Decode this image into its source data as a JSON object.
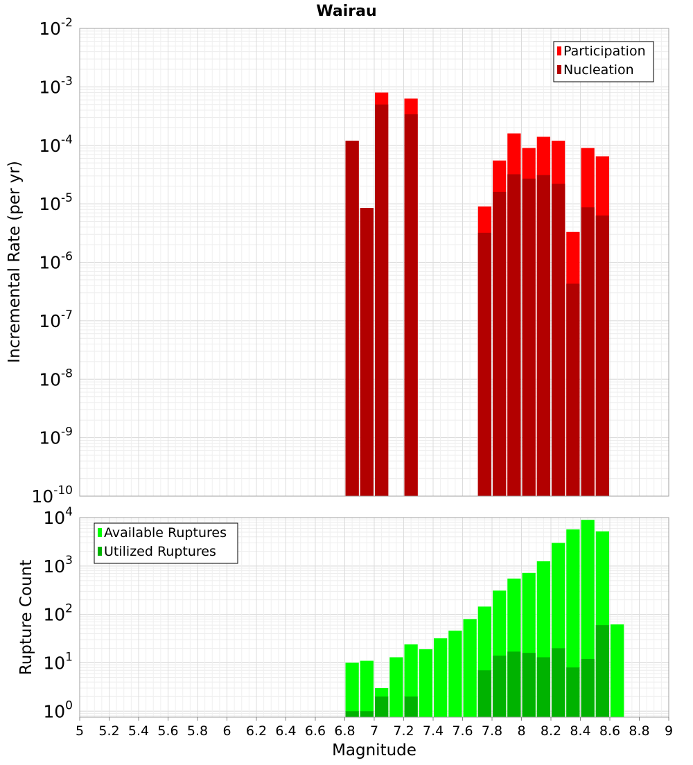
{
  "chart_data": [
    {
      "type": "bar",
      "title": "Wairau",
      "xlabel": "",
      "ylabel": "Incremental Rate (per yr)",
      "yscale": "log",
      "ylim": [
        1e-10,
        0.01
      ],
      "xlim": [
        5,
        9
      ],
      "bin_width": 0.1,
      "grid": true,
      "legend_position": "top-right",
      "x": [
        6.85,
        6.95,
        7.05,
        7.25,
        7.75,
        7.85,
        7.95,
        8.05,
        8.15,
        8.25,
        8.35,
        8.45,
        8.55
      ],
      "series": [
        {
          "name": "Participation",
          "color": "#ff0000",
          "values": [
            0.00012,
            8.5e-06,
            0.0008,
            0.00063,
            9e-06,
            5.5e-05,
            0.00016,
            9e-05,
            0.00014,
            0.00012,
            3.3e-06,
            9e-05,
            6.5e-05
          ]
        },
        {
          "name": "Nucleation",
          "color": "#b20000",
          "values": [
            0.00012,
            8.5e-06,
            0.0005,
            0.00034,
            3.2e-06,
            1.6e-05,
            3.2e-05,
            2.7e-05,
            3.1e-05,
            2.2e-05,
            4.3e-07,
            8.7e-06,
            6.3e-06
          ]
        }
      ]
    },
    {
      "type": "bar",
      "title": "",
      "xlabel": "Magnitude",
      "ylabel": "Rupture Count",
      "yscale": "log",
      "ylim": [
        0.75,
        10000
      ],
      "xlim": [
        5,
        9
      ],
      "bin_width": 0.1,
      "grid": true,
      "legend_position": "top-left",
      "x": [
        6.85,
        6.95,
        7.05,
        7.15,
        7.25,
        7.35,
        7.45,
        7.55,
        7.65,
        7.75,
        7.85,
        7.95,
        8.05,
        8.15,
        8.25,
        8.35,
        8.45,
        8.55,
        8.65
      ],
      "series": [
        {
          "name": "Available Ruptures",
          "color": "#00ff00",
          "values": [
            10,
            11,
            3,
            13,
            24,
            19,
            32,
            46,
            80,
            145,
            310,
            550,
            720,
            1250,
            3000,
            5700,
            9000,
            5200,
            62
          ]
        },
        {
          "name": "Utilized Ruptures",
          "color": "#00b200",
          "values": [
            1,
            1,
            2,
            null,
            2,
            null,
            null,
            null,
            null,
            7,
            14,
            17,
            16,
            13,
            20,
            8,
            12,
            60,
            null
          ]
        }
      ]
    }
  ],
  "x_ticks": [
    "5",
    "5.2",
    "5.4",
    "5.6",
    "5.8",
    "6",
    "6.2",
    "6.4",
    "6.6",
    "6.8",
    "7",
    "7.2",
    "7.4",
    "7.6",
    "7.8",
    "8",
    "8.2",
    "8.4",
    "8.6",
    "8.8",
    "9"
  ],
  "top_y_ticks": [
    {
      "base": "10",
      "exp": "-2",
      "value": 0.01
    },
    {
      "base": "10",
      "exp": "-3",
      "value": 0.001
    },
    {
      "base": "10",
      "exp": "-4",
      "value": 0.0001
    },
    {
      "base": "10",
      "exp": "-5",
      "value": 1e-05
    },
    {
      "base": "10",
      "exp": "-6",
      "value": 1e-06
    },
    {
      "base": "10",
      "exp": "-7",
      "value": 1e-07
    },
    {
      "base": "10",
      "exp": "-8",
      "value": 1e-08
    },
    {
      "base": "10",
      "exp": "-9",
      "value": 1e-09
    },
    {
      "base": "10",
      "exp": "-10",
      "value": 1e-10
    }
  ],
  "bottom_y_ticks": [
    {
      "base": "10",
      "exp": "4",
      "value": 10000.0
    },
    {
      "base": "10",
      "exp": "3",
      "value": 1000.0
    },
    {
      "base": "10",
      "exp": "2",
      "value": 100.0
    },
    {
      "base": "10",
      "exp": "1",
      "value": 10.0
    },
    {
      "base": "10",
      "exp": "0",
      "value": 1
    }
  ]
}
